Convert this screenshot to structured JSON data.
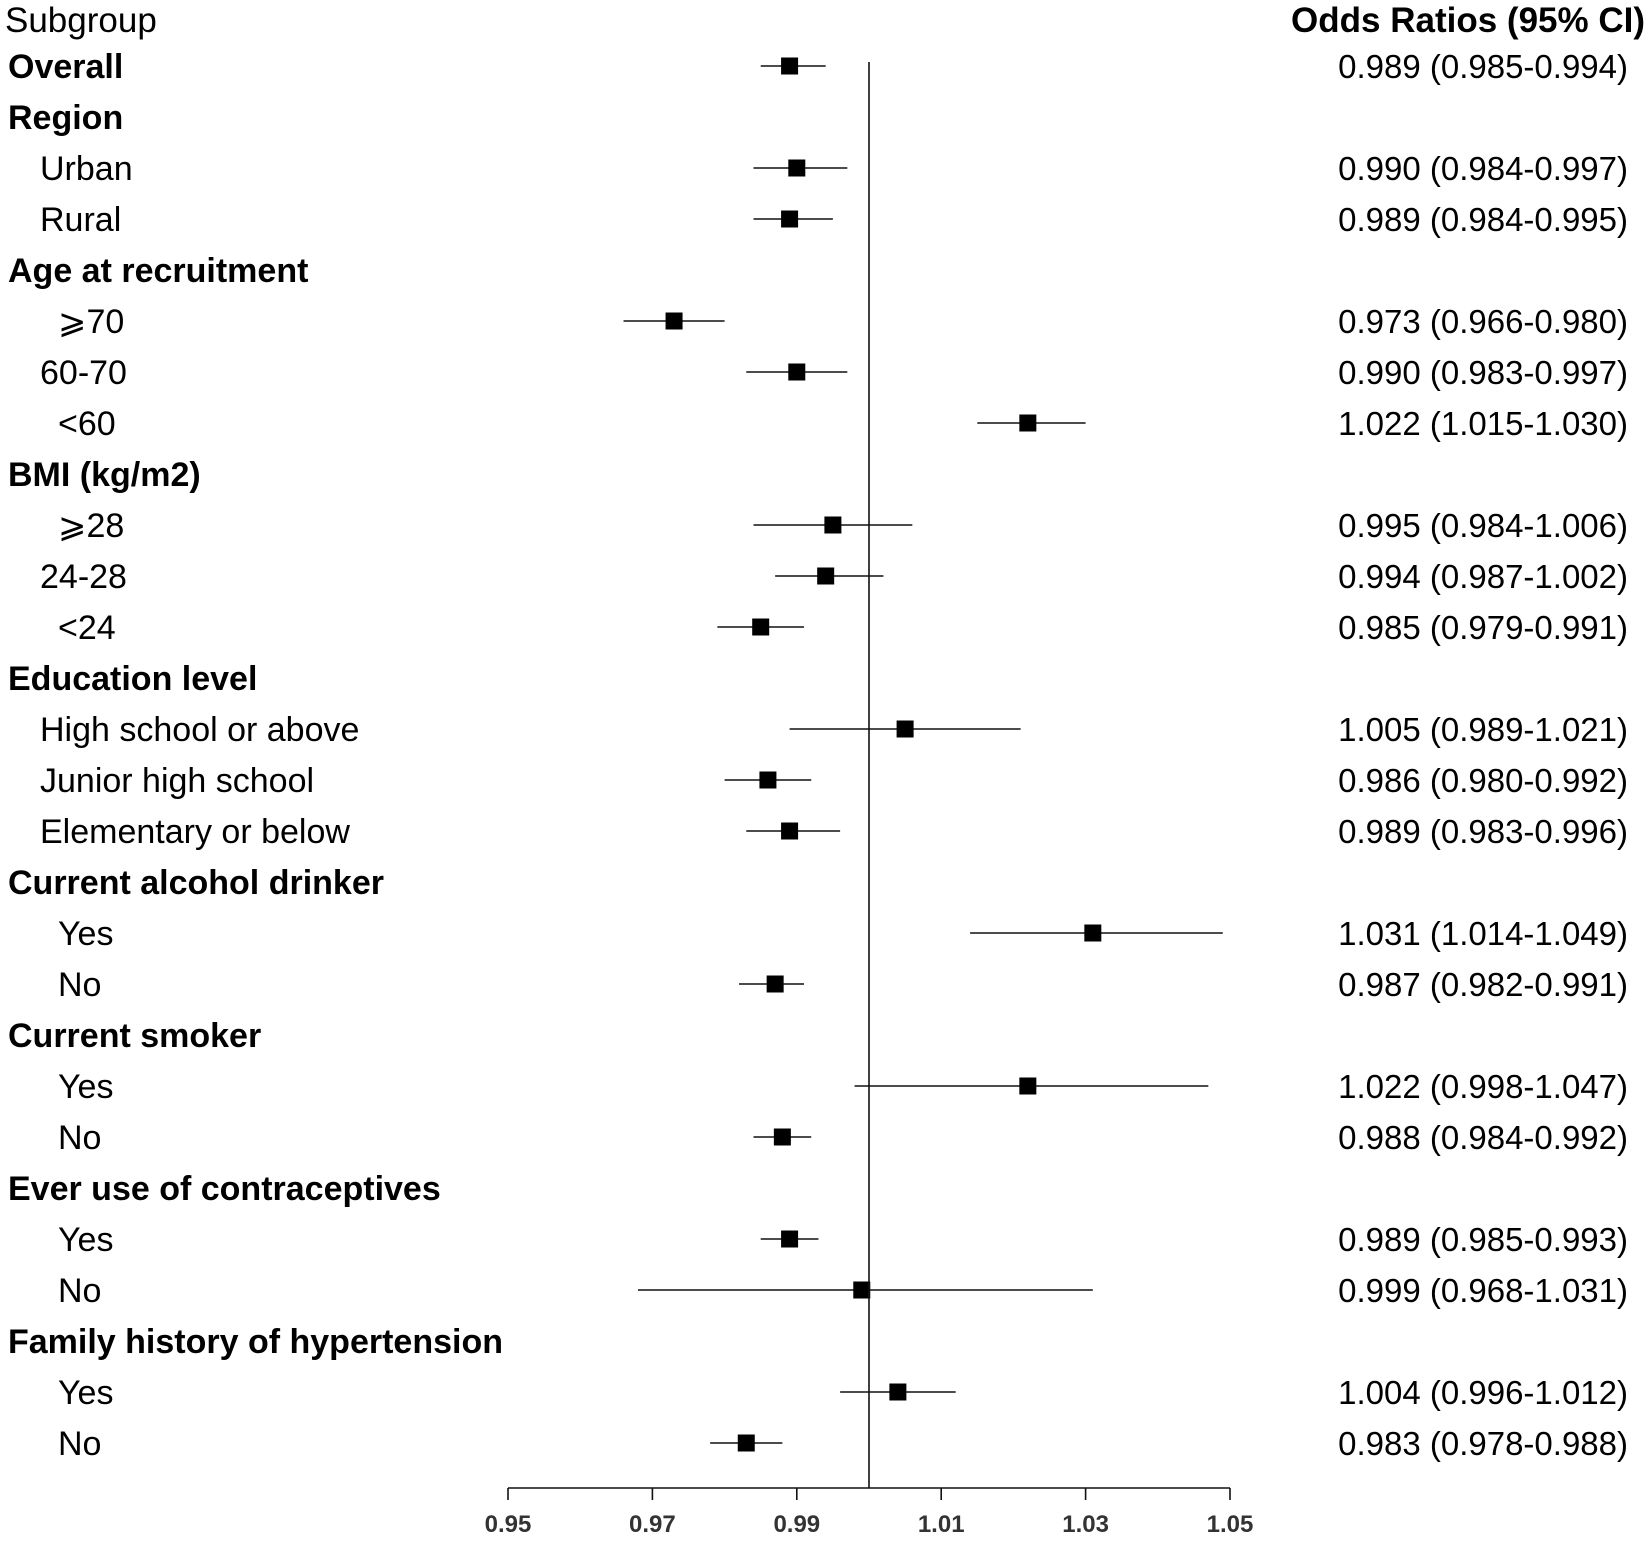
{
  "header": {
    "subgroup": "Subgroup",
    "or_col": "Odds Ratios (95% CI)"
  },
  "chart_data": {
    "type": "forest",
    "title": "",
    "xlabel": "",
    "ylabel": "",
    "reference_line": 1.0,
    "xlim": [
      0.95,
      1.05
    ],
    "x_ticks": [
      "0.95",
      "0.97",
      "0.99",
      "1.01",
      "1.03",
      "1.05"
    ],
    "marker": "square",
    "rows": [
      {
        "label": "Overall",
        "bold": true,
        "indent": 0,
        "or": 0.989,
        "lo": 0.985,
        "hi": 0.994,
        "text": "0.989 (0.985-0.994)"
      },
      {
        "label": "Region",
        "bold": true,
        "indent": 0
      },
      {
        "label": "Urban",
        "bold": false,
        "indent": 1,
        "or": 0.99,
        "lo": 0.984,
        "hi": 0.997,
        "text": "0.990 (0.984-0.997)"
      },
      {
        "label": "Rural",
        "bold": false,
        "indent": 1,
        "or": 0.989,
        "lo": 0.984,
        "hi": 0.995,
        "text": "0.989 (0.984-0.995)"
      },
      {
        "label": "Age at recruitment",
        "bold": true,
        "indent": 0
      },
      {
        "label": "⩾70",
        "bold": false,
        "indent": 2,
        "or": 0.973,
        "lo": 0.966,
        "hi": 0.98,
        "text": "0.973 (0.966-0.980)"
      },
      {
        "label": "60-70",
        "bold": false,
        "indent": 1,
        "or": 0.99,
        "lo": 0.983,
        "hi": 0.997,
        "text": "0.990 (0.983-0.997)"
      },
      {
        "label": "<60",
        "bold": false,
        "indent": 2,
        "or": 1.022,
        "lo": 1.015,
        "hi": 1.03,
        "text": "1.022 (1.015-1.030)"
      },
      {
        "label": "BMI (kg/m2)",
        "bold": true,
        "indent": 0
      },
      {
        "label": "⩾28",
        "bold": false,
        "indent": 2,
        "or": 0.995,
        "lo": 0.984,
        "hi": 1.006,
        "text": "0.995 (0.984-1.006)"
      },
      {
        "label": "24-28",
        "bold": false,
        "indent": 1,
        "or": 0.994,
        "lo": 0.987,
        "hi": 1.002,
        "text": "0.994 (0.987-1.002)"
      },
      {
        "label": "<24",
        "bold": false,
        "indent": 2,
        "or": 0.985,
        "lo": 0.979,
        "hi": 0.991,
        "text": "0.985 (0.979-0.991)"
      },
      {
        "label": "Education level",
        "bold": true,
        "indent": 0
      },
      {
        "label": "High school or above",
        "bold": false,
        "indent": 1,
        "or": 1.005,
        "lo": 0.989,
        "hi": 1.021,
        "text": "1.005 (0.989-1.021)"
      },
      {
        "label": "Junior high school",
        "bold": false,
        "indent": 1,
        "or": 0.986,
        "lo": 0.98,
        "hi": 0.992,
        "text": "0.986 (0.980-0.992)"
      },
      {
        "label": "Elementary or below",
        "bold": false,
        "indent": 1,
        "or": 0.989,
        "lo": 0.983,
        "hi": 0.996,
        "text": "0.989 (0.983-0.996)"
      },
      {
        "label": "Current alcohol drinker",
        "bold": true,
        "indent": 0
      },
      {
        "label": "Yes",
        "bold": false,
        "indent": 2,
        "or": 1.031,
        "lo": 1.014,
        "hi": 1.049,
        "text": "1.031 (1.014-1.049)"
      },
      {
        "label": "No",
        "bold": false,
        "indent": 2,
        "or": 0.987,
        "lo": 0.982,
        "hi": 0.991,
        "text": "0.987 (0.982-0.991)"
      },
      {
        "label": "Current smoker",
        "bold": true,
        "indent": 0
      },
      {
        "label": "Yes",
        "bold": false,
        "indent": 2,
        "or": 1.022,
        "lo": 0.998,
        "hi": 1.047,
        "text": "1.022 (0.998-1.047)"
      },
      {
        "label": "No",
        "bold": false,
        "indent": 2,
        "or": 0.988,
        "lo": 0.984,
        "hi": 0.992,
        "text": "0.988 (0.984-0.992)"
      },
      {
        "label": "Ever use of contraceptives",
        "bold": true,
        "indent": 0
      },
      {
        "label": "Yes",
        "bold": false,
        "indent": 2,
        "or": 0.989,
        "lo": 0.985,
        "hi": 0.993,
        "text": "0.989 (0.985-0.993)"
      },
      {
        "label": "No",
        "bold": false,
        "indent": 2,
        "or": 0.999,
        "lo": 0.968,
        "hi": 1.031,
        "text": "0.999 (0.968-1.031)"
      },
      {
        "label": "Family history of hypertension",
        "bold": true,
        "indent": 0
      },
      {
        "label": "Yes",
        "bold": false,
        "indent": 2,
        "or": 1.004,
        "lo": 0.996,
        "hi": 1.012,
        "text": "1.004 (0.996-1.012)"
      },
      {
        "label": "No",
        "bold": false,
        "indent": 2,
        "or": 0.983,
        "lo": 0.978,
        "hi": 0.988,
        "text": "0.983 (0.978-0.988)"
      }
    ]
  }
}
